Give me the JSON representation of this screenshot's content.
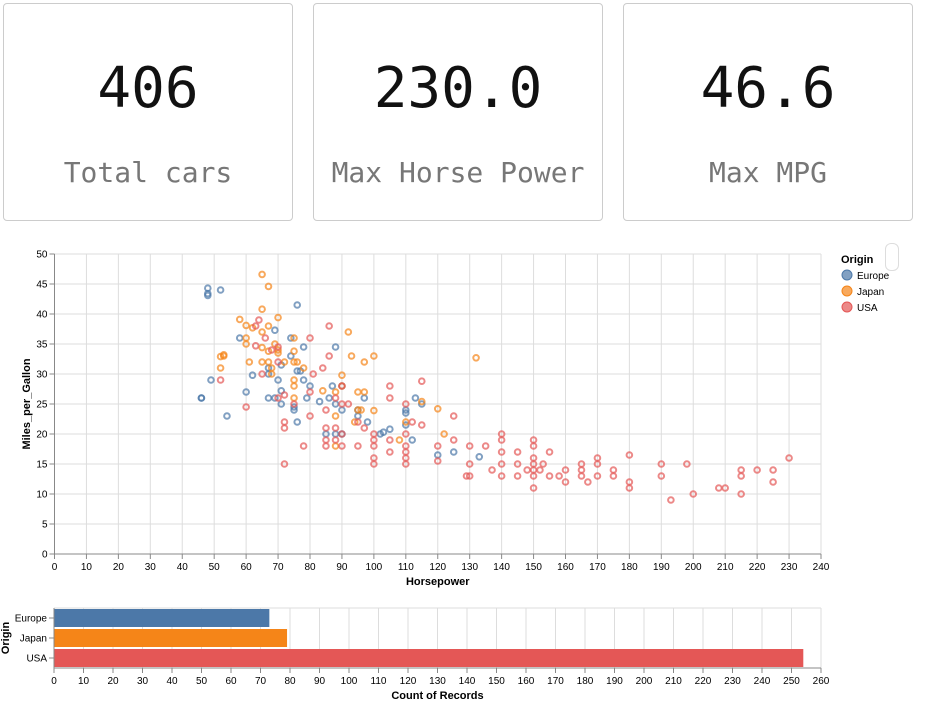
{
  "kpis": [
    {
      "value": "406",
      "label": "Total cars"
    },
    {
      "value": "230.0",
      "label": "Max Horse Power"
    },
    {
      "value": "46.6",
      "label": "Max MPG"
    }
  ],
  "colors": {
    "Europe": "#4c78a8",
    "Japan": "#f58518",
    "USA": "#e45756"
  },
  "chart_data": [
    {
      "type": "scatter",
      "xlabel": "Horsepower",
      "ylabel": "Miles_per_Gallon",
      "xlim": [
        0,
        240
      ],
      "ylim": [
        0,
        50
      ],
      "xticks": [
        0,
        10,
        20,
        30,
        40,
        50,
        60,
        70,
        80,
        90,
        100,
        110,
        120,
        130,
        140,
        150,
        160,
        170,
        180,
        190,
        200,
        210,
        220,
        230,
        240
      ],
      "yticks": [
        0,
        5,
        10,
        15,
        20,
        25,
        30,
        35,
        40,
        45,
        50
      ],
      "grid": true,
      "legend": "top-right",
      "legend_title": "Origin",
      "series": [
        {
          "name": "Europe",
          "points": [
            [
              46,
              26
            ],
            [
              46,
              26
            ],
            [
              48,
              44.3
            ],
            [
              48,
              43.4
            ],
            [
              48,
              43.1
            ],
            [
              49,
              29
            ],
            [
              52,
              44
            ],
            [
              54,
              23
            ],
            [
              58,
              36
            ],
            [
              60,
              27
            ],
            [
              62,
              29.8
            ],
            [
              67,
              26
            ],
            [
              67,
              31
            ],
            [
              67,
              30
            ],
            [
              69,
              26
            ],
            [
              69,
              37.3
            ],
            [
              70,
              29
            ],
            [
              71,
              27.2
            ],
            [
              71,
              31.5
            ],
            [
              71,
              25
            ],
            [
              74,
              36
            ],
            [
              74,
              33
            ],
            [
              75,
              24
            ],
            [
              75,
              24.5
            ],
            [
              76,
              22
            ],
            [
              76,
              30.5
            ],
            [
              76,
              41.5
            ],
            [
              77,
              30.5
            ],
            [
              78,
              29
            ],
            [
              78,
              34.5
            ],
            [
              79,
              26
            ],
            [
              80,
              28
            ],
            [
              83,
              25.4
            ],
            [
              85,
              20
            ],
            [
              86,
              26
            ],
            [
              87,
              28
            ],
            [
              88,
              34.5
            ],
            [
              88,
              25
            ],
            [
              88,
              20
            ],
            [
              90,
              20
            ],
            [
              90,
              28
            ],
            [
              90,
              24
            ],
            [
              95,
              23
            ],
            [
              95,
              24
            ],
            [
              97,
              26
            ],
            [
              98,
              22
            ],
            [
              102,
              20
            ],
            [
              103,
              20.3
            ],
            [
              105,
              20.8
            ],
            [
              110,
              24
            ],
            [
              110,
              23.5
            ],
            [
              110,
              21.5
            ],
            [
              112,
              19
            ],
            [
              113,
              26
            ],
            [
              115,
              25
            ],
            [
              120,
              16.5
            ],
            [
              125,
              17
            ],
            [
              133,
              16.2
            ]
          ]
        },
        {
          "name": "Japan",
          "points": [
            [
              52,
              31
            ],
            [
              52,
              32.9
            ],
            [
              53,
              33
            ],
            [
              53,
              33.2
            ],
            [
              58,
              39.1
            ],
            [
              60,
              38.1
            ],
            [
              60,
              35
            ],
            [
              60,
              36
            ],
            [
              61,
              32
            ],
            [
              62,
              37.7
            ],
            [
              65,
              46.6
            ],
            [
              65,
              37
            ],
            [
              65,
              34.4
            ],
            [
              65,
              32
            ],
            [
              65,
              40.8
            ],
            [
              67,
              44.6
            ],
            [
              67,
              38
            ],
            [
              67,
              33.8
            ],
            [
              67,
              32
            ],
            [
              68,
              31
            ],
            [
              68,
              30
            ],
            [
              69,
              35
            ],
            [
              70,
              39.4
            ],
            [
              70,
              34
            ],
            [
              70,
              33.5
            ],
            [
              72,
              32
            ],
            [
              75,
              33.8
            ],
            [
              75,
              32
            ],
            [
              75,
              28
            ],
            [
              75,
              26
            ],
            [
              75,
              29
            ],
            [
              75,
              36
            ],
            [
              76,
              32
            ],
            [
              78,
              31
            ],
            [
              84,
              27.2
            ],
            [
              88,
              27
            ],
            [
              88,
              23
            ],
            [
              88,
              18
            ],
            [
              90,
              29.8
            ],
            [
              90,
              28
            ],
            [
              92,
              37
            ],
            [
              93,
              33
            ],
            [
              94,
              22
            ],
            [
              95,
              27
            ],
            [
              95,
              24
            ],
            [
              96,
              24
            ],
            [
              97,
              32
            ],
            [
              97,
              27
            ],
            [
              100,
              33
            ],
            [
              100,
              23.9
            ],
            [
              110,
              22
            ],
            [
              108,
              19
            ],
            [
              115,
              25.4
            ],
            [
              120,
              24.2
            ],
            [
              122,
              20
            ],
            [
              132,
              32.7
            ]
          ]
        },
        {
          "name": "USA",
          "points": [
            [
              52,
              29
            ],
            [
              60,
              24.5
            ],
            [
              63,
              38
            ],
            [
              64,
              39
            ],
            [
              63,
              34.7
            ],
            [
              65,
              30
            ],
            [
              66,
              36
            ],
            [
              68,
              34
            ],
            [
              70,
              32
            ],
            [
              70,
              34.5
            ],
            [
              70,
              26
            ],
            [
              72,
              21
            ],
            [
              72,
              22
            ],
            [
              72,
              15
            ],
            [
              72,
              26.5
            ],
            [
              75,
              25
            ],
            [
              78,
              18
            ],
            [
              80,
              36
            ],
            [
              80,
              27
            ],
            [
              80,
              23
            ],
            [
              81,
              30
            ],
            [
              84,
              31
            ],
            [
              85,
              24
            ],
            [
              85,
              18
            ],
            [
              85,
              21
            ],
            [
              85,
              19
            ],
            [
              86,
              38
            ],
            [
              86,
              33
            ],
            [
              88,
              26
            ],
            [
              88,
              19
            ],
            [
              88,
              21
            ],
            [
              90,
              28
            ],
            [
              90,
              25
            ],
            [
              90,
              18
            ],
            [
              90,
              20
            ],
            [
              92,
              25
            ],
            [
              95,
              22
            ],
            [
              95,
              18
            ],
            [
              97,
              21
            ],
            [
              100,
              19
            ],
            [
              100,
              15
            ],
            [
              100,
              16
            ],
            [
              100,
              18
            ],
            [
              100,
              20
            ],
            [
              105,
              17
            ],
            [
              105,
              19
            ],
            [
              105,
              26
            ],
            [
              105,
              28
            ],
            [
              110,
              18
            ],
            [
              110,
              16
            ],
            [
              110,
              15
            ],
            [
              110,
              17
            ],
            [
              110,
              20
            ],
            [
              110,
              25
            ],
            [
              112,
              22
            ],
            [
              115,
              28.8
            ],
            [
              115,
              21.5
            ],
            [
              120,
              18
            ],
            [
              120,
              15.5
            ],
            [
              125,
              19
            ],
            [
              125,
              23
            ],
            [
              129,
              13
            ],
            [
              130,
              18
            ],
            [
              130,
              15
            ],
            [
              130,
              13
            ],
            [
              135,
              18
            ],
            [
              137,
              14
            ],
            [
              140,
              13
            ],
            [
              140,
              15
            ],
            [
              140,
              17
            ],
            [
              140,
              20
            ],
            [
              140,
              19
            ],
            [
              145,
              15
            ],
            [
              145,
              13
            ],
            [
              145,
              17
            ],
            [
              148,
              14
            ],
            [
              150,
              14
            ],
            [
              150,
              15
            ],
            [
              150,
              16
            ],
            [
              150,
              13
            ],
            [
              150,
              11
            ],
            [
              150,
              18
            ],
            [
              150,
              19
            ],
            [
              152,
              14
            ],
            [
              153,
              15
            ],
            [
              155,
              17
            ],
            [
              155,
              13
            ],
            [
              158,
              13
            ],
            [
              160,
              14
            ],
            [
              160,
              12
            ],
            [
              165,
              14
            ],
            [
              165,
              15
            ],
            [
              165,
              13
            ],
            [
              167,
              12
            ],
            [
              170,
              16
            ],
            [
              170,
              15
            ],
            [
              170,
              13
            ],
            [
              175,
              13
            ],
            [
              175,
              14
            ],
            [
              180,
              16.5
            ],
            [
              180,
              12
            ],
            [
              180,
              11
            ],
            [
              190,
              15
            ],
            [
              190,
              13
            ],
            [
              193,
              9
            ],
            [
              198,
              15
            ],
            [
              200,
              10
            ],
            [
              208,
              11
            ],
            [
              210,
              11
            ],
            [
              215,
              14
            ],
            [
              215,
              13
            ],
            [
              215,
              10
            ],
            [
              220,
              14
            ],
            [
              225,
              14
            ],
            [
              225,
              12
            ],
            [
              230,
              16
            ]
          ]
        }
      ]
    },
    {
      "type": "bar",
      "orientation": "horizontal",
      "xlabel": "Count of Records",
      "ylabel": "Origin",
      "xlim": [
        0,
        260
      ],
      "xticks": [
        0,
        10,
        20,
        30,
        40,
        50,
        60,
        70,
        80,
        90,
        100,
        110,
        120,
        130,
        140,
        150,
        160,
        170,
        180,
        190,
        200,
        210,
        220,
        230,
        240,
        250,
        260
      ],
      "categories": [
        "Europe",
        "Japan",
        "USA"
      ],
      "values": [
        73,
        79,
        254
      ],
      "grid": true
    }
  ]
}
